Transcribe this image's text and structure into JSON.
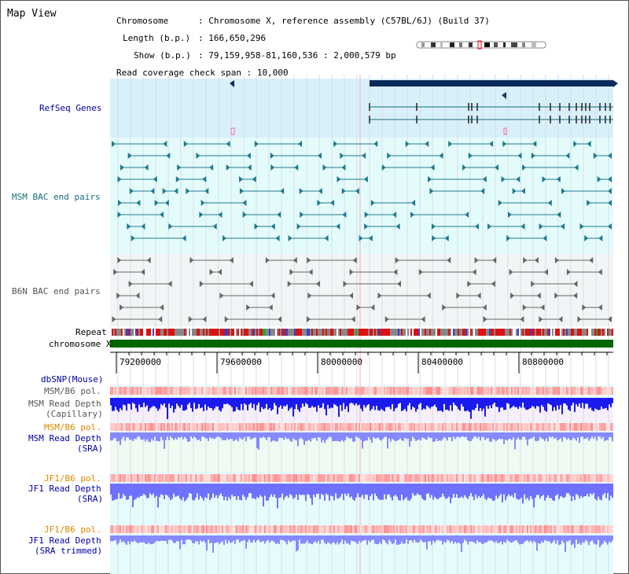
{
  "title": "Map View",
  "info": {
    "chromosome_label": "Chromosome",
    "chromosome_value": "Chromosome X, reference assembly (C57BL/6J) (Build 37)",
    "length_label": "Length (b.p.)",
    "length_value": "166,650,296",
    "show_label": "Show (b.p.)",
    "show_value": "79,159,958-81,160,536 : 2,000,579 bp",
    "coverage_label": "Read coverage check span",
    "coverage_value": "10,000"
  },
  "tracks": {
    "refseq": "RefSeq Genes",
    "msm_bac": "MSM BAC end pairs",
    "b6n_bac": "B6N BAC end pairs",
    "repeat": "Repeat",
    "chromosome": "chromosome X",
    "dbsnp": "dbSNP(Mouse)",
    "msm_pol_1": "MSM/B6 pol.",
    "msm_depth_cap_1": "MSM Read Depth",
    "msm_depth_cap_2": "(Capillary)",
    "msm_pol_2": "MSM/B6 pol.",
    "msm_depth_sra_1": "MSM Read Depth",
    "msm_depth_sra_2": "(SRA)",
    "jf1_pol_1": "JF1/B6 pol.",
    "jf1_depth_sra_1": "JF1 Read Depth",
    "jf1_depth_sra_2": "(SRA)",
    "jf1_pol_2": "JF1/B6 pol.",
    "jf1_depth_trim_1": "JF1 Read Depth",
    "jf1_depth_trim_2": "(SRA trimmed)"
  },
  "axis": {
    "ticks": [
      "79200000",
      "79600000",
      "80000000",
      "80400000",
      "80800000"
    ]
  },
  "colors": {
    "refseq_bg": "#d8f0fa",
    "msm_bg": "#e4fbfb",
    "b6n_bg": "#f2f5f5",
    "lower_bg": "#e6fcfc",
    "chromosome_bar": "#006600",
    "gene_dark": "#0a2a5a",
    "msm_depth": "#1a1aee",
    "sra_depth": "#8888ff"
  }
}
